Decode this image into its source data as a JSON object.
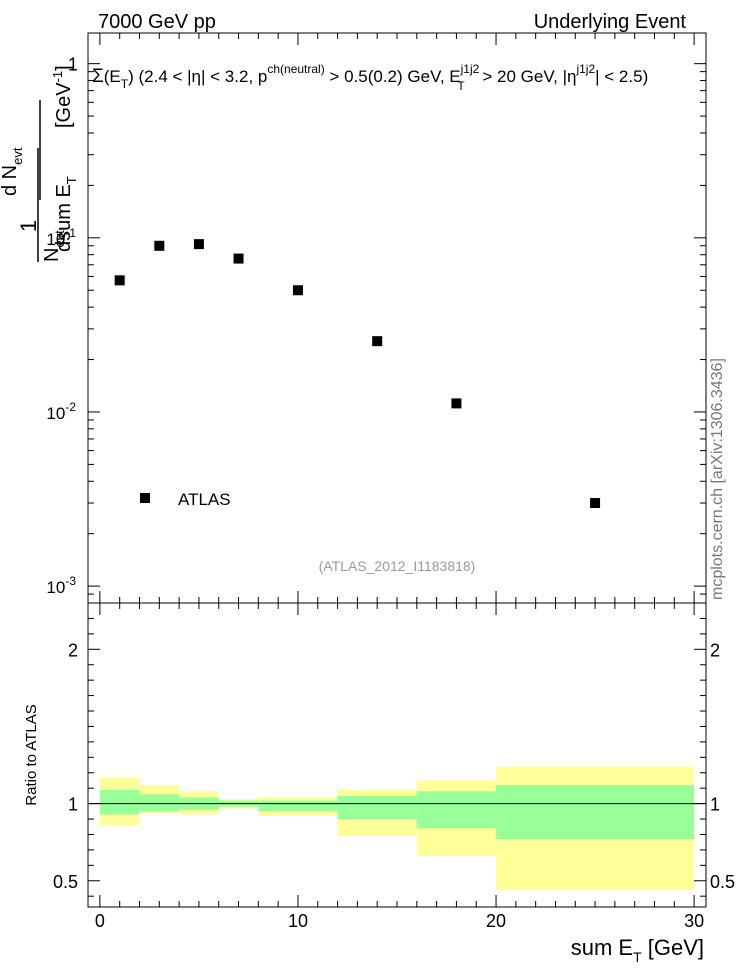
{
  "header": {
    "left": "7000 GeV pp",
    "right": "Underlying Event"
  },
  "watermark": "mcplots.cern.ch [arXiv:1306.3436]",
  "analysis_tag": "(ATLAS_2012_I1183818)",
  "colors": {
    "data_marker": "#000000",
    "band_inner": "#99ff99",
    "band_outer": "#ffff99",
    "ref_line": "#000000",
    "tag_text": "#999999"
  },
  "chart_data": [
    {
      "type": "scatter",
      "panel": "main",
      "title": "Σ(E_T) (2.4 < |η| < 3.2, p^ch(neutral) > 0.5(0.2) GeV, E_T^j1j2 > 20 GeV, |η^j1j2| < 2.5)",
      "ylabel": "1/N_evt dN_evt/dsum E_T [GeV^-1]",
      "yscale": "log",
      "ylim": [
        0.0008,
        1.5
      ],
      "xlim": [
        -0.6,
        30.6
      ],
      "y_tick_labels": [
        "10^-3",
        "10^-2",
        "10^-1",
        "1"
      ],
      "legend": {
        "position": "bottom-left",
        "entries": [
          "ATLAS"
        ]
      },
      "series": [
        {
          "name": "ATLAS",
          "x": [
            1,
            3,
            5,
            7,
            10,
            14,
            18,
            25
          ],
          "y": [
            0.057,
            0.09,
            0.092,
            0.076,
            0.05,
            0.0255,
            0.0112,
            0.003
          ]
        }
      ]
    },
    {
      "type": "area",
      "panel": "ratio",
      "ylabel": "Ratio to ATLAS",
      "xlabel": "sum E_T [GeV]",
      "xlim": [
        -0.6,
        30.6
      ],
      "ylim": [
        0.33,
        2.3
      ],
      "x_tick_labels": [
        "0",
        "10",
        "20",
        "30"
      ],
      "y_tick_labels": [
        "0.5",
        "1",
        "2"
      ],
      "reference_line": 1,
      "bins": [
        {
          "lo": 0,
          "hi": 2,
          "inner": [
            0.93,
            1.09
          ],
          "outer": [
            0.86,
            1.17
          ]
        },
        {
          "lo": 2,
          "hi": 4,
          "inner": [
            0.95,
            1.06
          ],
          "outer": [
            0.94,
            1.12
          ]
        },
        {
          "lo": 4,
          "hi": 6,
          "inner": [
            0.96,
            1.04
          ],
          "outer": [
            0.93,
            1.08
          ]
        },
        {
          "lo": 6,
          "hi": 8,
          "inner": [
            0.98,
            1.02
          ],
          "outer": [
            0.97,
            1.03
          ]
        },
        {
          "lo": 8,
          "hi": 12,
          "inner": [
            0.95,
            1.02
          ],
          "outer": [
            0.92,
            1.04
          ]
        },
        {
          "lo": 12,
          "hi": 16,
          "inner": [
            0.9,
            1.05
          ],
          "outer": [
            0.79,
            1.09
          ]
        },
        {
          "lo": 16,
          "hi": 20,
          "inner": [
            0.84,
            1.08
          ],
          "outer": [
            0.66,
            1.15
          ]
        },
        {
          "lo": 20,
          "hi": 30,
          "inner": [
            0.77,
            1.12
          ],
          "outer": [
            0.44,
            1.24
          ]
        }
      ]
    }
  ]
}
